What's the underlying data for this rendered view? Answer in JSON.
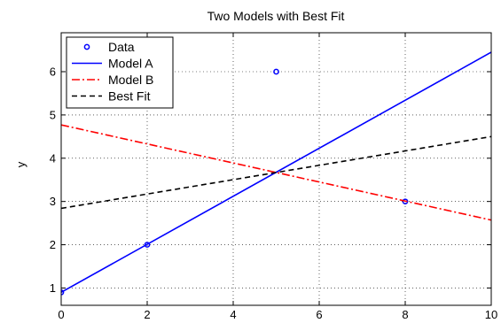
{
  "chart_data": {
    "type": "line",
    "title": "Two Models with Best Fit",
    "xlabel": "",
    "ylabel": "y",
    "xlim": [
      0,
      10
    ],
    "ylim": [
      0.6,
      6.9
    ],
    "xticks": [
      0,
      2,
      4,
      6,
      8,
      10
    ],
    "yticks": [
      1,
      2,
      3,
      4,
      5,
      6
    ],
    "grid": true,
    "legend_position": "top-left",
    "series": [
      {
        "name": "Data",
        "kind": "scatter",
        "color": "#0000ff",
        "marker": "circle",
        "x": [
          0,
          2,
          5,
          8
        ],
        "y": [
          0.9,
          2.0,
          6.0,
          3.0
        ]
      },
      {
        "name": "Model A",
        "kind": "line",
        "color": "#0000ff",
        "dash": "solid",
        "x": [
          0,
          10
        ],
        "y": [
          0.9,
          6.45
        ]
      },
      {
        "name": "Model B",
        "kind": "line",
        "color": "#ff0000",
        "dash": "dashdot",
        "x": [
          0,
          10
        ],
        "y": [
          4.77,
          2.57
        ]
      },
      {
        "name": "Best Fit",
        "kind": "line",
        "color": "#000000",
        "dash": "dashed",
        "x": [
          0,
          10
        ],
        "y": [
          2.84,
          4.5
        ]
      }
    ]
  }
}
